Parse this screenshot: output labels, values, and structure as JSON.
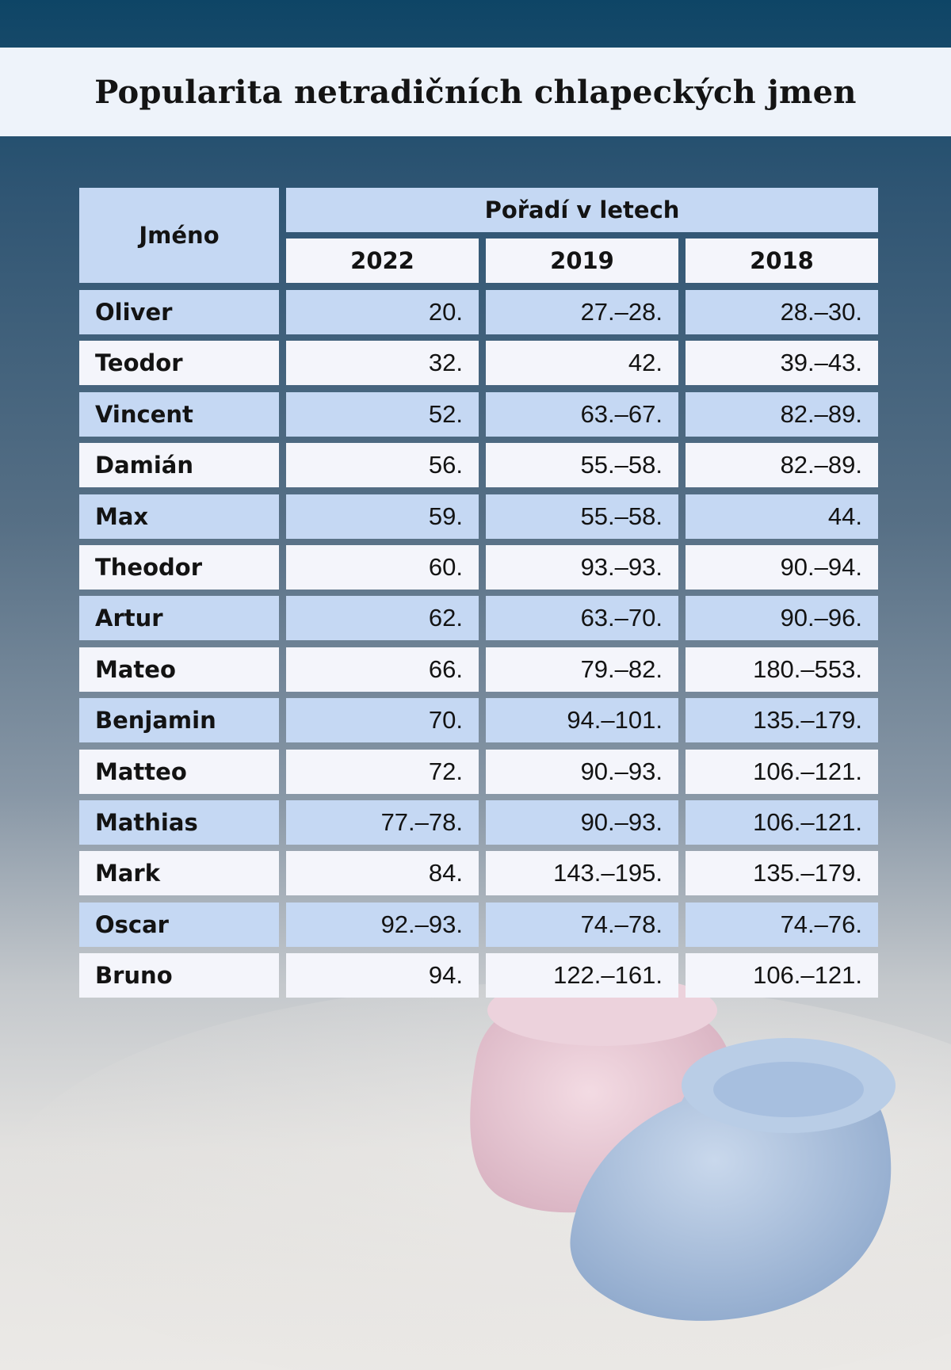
{
  "title": "Popularita netradičních chlapeckých jmen",
  "table": {
    "name_header": "Jméno",
    "group_header": "Pořadí v letech",
    "years": [
      "2022",
      "2019",
      "2018"
    ],
    "rows": [
      {
        "name": "Oliver",
        "values": [
          "20.",
          "27.–28.",
          "28.–30."
        ]
      },
      {
        "name": "Teodor",
        "values": [
          "32.",
          "42.",
          "39.–43."
        ]
      },
      {
        "name": "Vincent",
        "values": [
          "52.",
          "63.–67.",
          "82.–89."
        ]
      },
      {
        "name": "Damián",
        "values": [
          "56.",
          "55.–58.",
          "82.–89."
        ]
      },
      {
        "name": "Max",
        "values": [
          "59.",
          "55.–58.",
          "44."
        ]
      },
      {
        "name": "Theodor",
        "values": [
          "60.",
          "93.–93.",
          "90.–94."
        ]
      },
      {
        "name": "Artur",
        "values": [
          "62.",
          "63.–70.",
          "90.–96."
        ]
      },
      {
        "name": "Mateo",
        "values": [
          "66.",
          "79.–82.",
          "180.–553."
        ]
      },
      {
        "name": "Benjamin",
        "values": [
          "70.",
          "94.–101.",
          "135.–179."
        ]
      },
      {
        "name": "Matteo",
        "values": [
          "72.",
          "90.–93.",
          "106.–121."
        ]
      },
      {
        "name": "Mathias",
        "values": [
          "77.–78.",
          "90.–93.",
          "106.–121."
        ]
      },
      {
        "name": "Mark",
        "values": [
          "84.",
          "143.–195.",
          "135.–179."
        ]
      },
      {
        "name": "Oscar",
        "values": [
          "92.–93.",
          "74.–78.",
          "74.–76."
        ]
      },
      {
        "name": "Bruno",
        "values": [
          "94.",
          "122.–161.",
          "106.–121."
        ]
      }
    ]
  },
  "colors": {
    "row_blue": "#c5d8f3",
    "row_white": "#f4f5fb",
    "title_bg": "#eef3fa"
  }
}
